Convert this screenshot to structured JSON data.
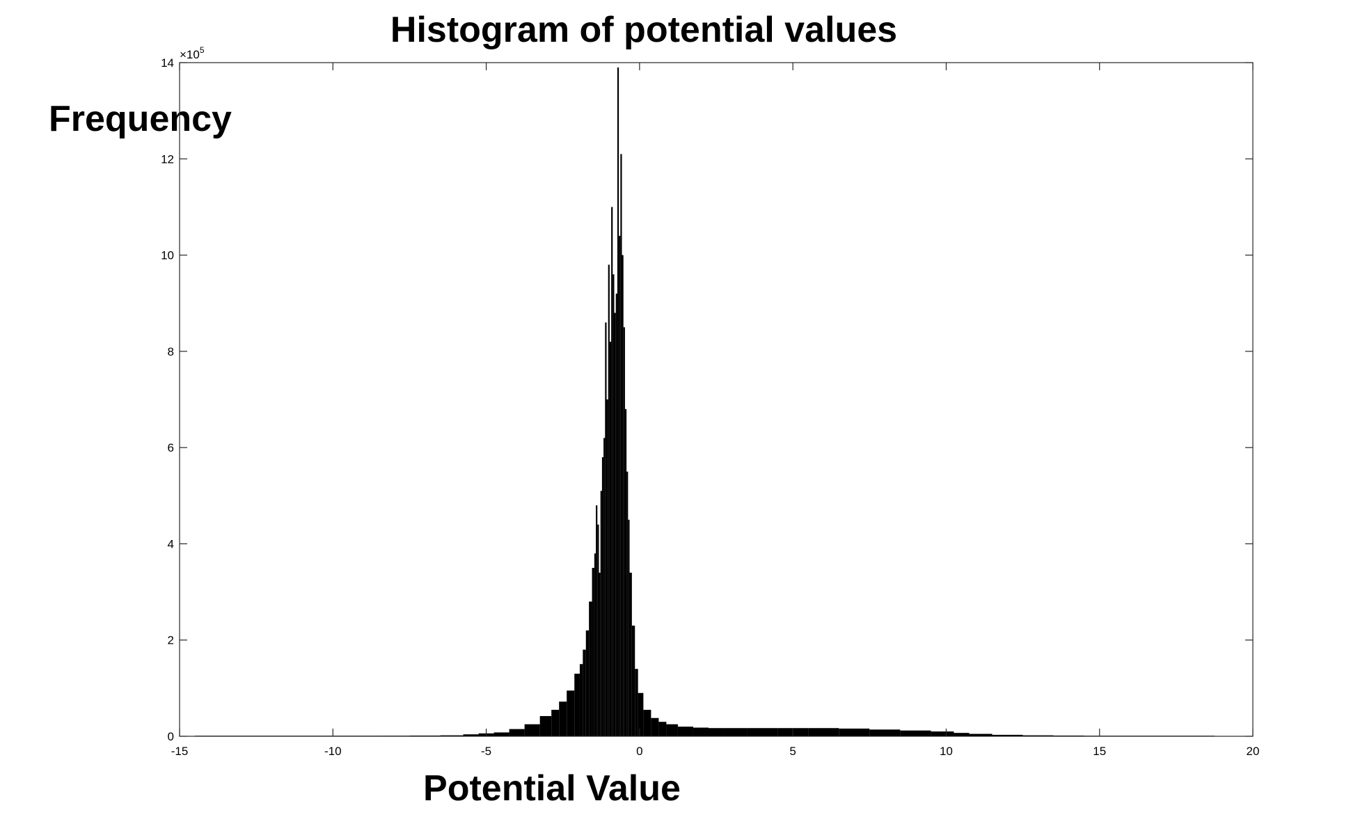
{
  "chart_data": {
    "type": "bar",
    "title": "Histogram of potential values",
    "xlabel": "Potential Value",
    "ylabel": "Frequency",
    "xlim": [
      -15,
      20
    ],
    "ylim": [
      0,
      14
    ],
    "y_multiplier_base": "×10",
    "y_multiplier_exponent": "5",
    "xticks": [
      -15,
      -10,
      -5,
      0,
      5,
      10,
      15,
      20
    ],
    "yticks": [
      0,
      2,
      4,
      6,
      8,
      10,
      12,
      14
    ],
    "xtick_labels": [
      "-15",
      "-10",
      "-5",
      "0",
      "5",
      "10",
      "15",
      "20"
    ],
    "ytick_labels": [
      "0",
      "2",
      "4",
      "6",
      "8",
      "10",
      "12",
      "14"
    ],
    "grid": false,
    "bar_color": "#000000",
    "x": [
      -14,
      -13,
      -12,
      -11,
      -10,
      -9,
      -8,
      -7,
      -6,
      -5.5,
      -5,
      -4.5,
      -4,
      -3.5,
      -3,
      -2.75,
      -2.5,
      -2.25,
      -2,
      -1.9,
      -1.8,
      -1.7,
      -1.6,
      -1.5,
      -1.45,
      -1.4,
      -1.35,
      -1.3,
      -1.25,
      -1.2,
      -1.15,
      -1.1,
      -1.05,
      -1.0,
      -0.95,
      -0.9,
      -0.85,
      -0.8,
      -0.75,
      -0.7,
      -0.65,
      -0.6,
      -0.55,
      -0.5,
      -0.45,
      -0.4,
      -0.35,
      -0.3,
      -0.2,
      -0.1,
      0,
      0.25,
      0.5,
      0.75,
      1,
      1.5,
      2,
      2.5,
      3,
      4,
      5,
      6,
      7,
      8,
      9,
      10,
      10.5,
      11,
      12,
      13,
      14,
      15,
      16,
      17,
      18,
      18.5
    ],
    "values": [
      0.005,
      0.008,
      0.008,
      0.008,
      0.01,
      0.01,
      0.012,
      0.015,
      0.02,
      0.04,
      0.06,
      0.08,
      0.15,
      0.25,
      0.42,
      0.55,
      0.72,
      0.95,
      1.3,
      1.5,
      1.8,
      2.2,
      2.8,
      3.5,
      3.8,
      4.8,
      4.4,
      3.4,
      5.1,
      5.8,
      6.2,
      8.6,
      7.0,
      9.8,
      8.2,
      11.0,
      9.6,
      8.8,
      9.2,
      13.9,
      10.4,
      12.1,
      10.0,
      8.5,
      6.8,
      5.5,
      4.5,
      3.4,
      2.3,
      1.4,
      0.9,
      0.55,
      0.38,
      0.3,
      0.25,
      0.2,
      0.18,
      0.17,
      0.17,
      0.17,
      0.17,
      0.17,
      0.16,
      0.14,
      0.12,
      0.1,
      0.07,
      0.05,
      0.03,
      0.02,
      0.015,
      0.01,
      0.008,
      0.006,
      0.005,
      0.004
    ]
  }
}
